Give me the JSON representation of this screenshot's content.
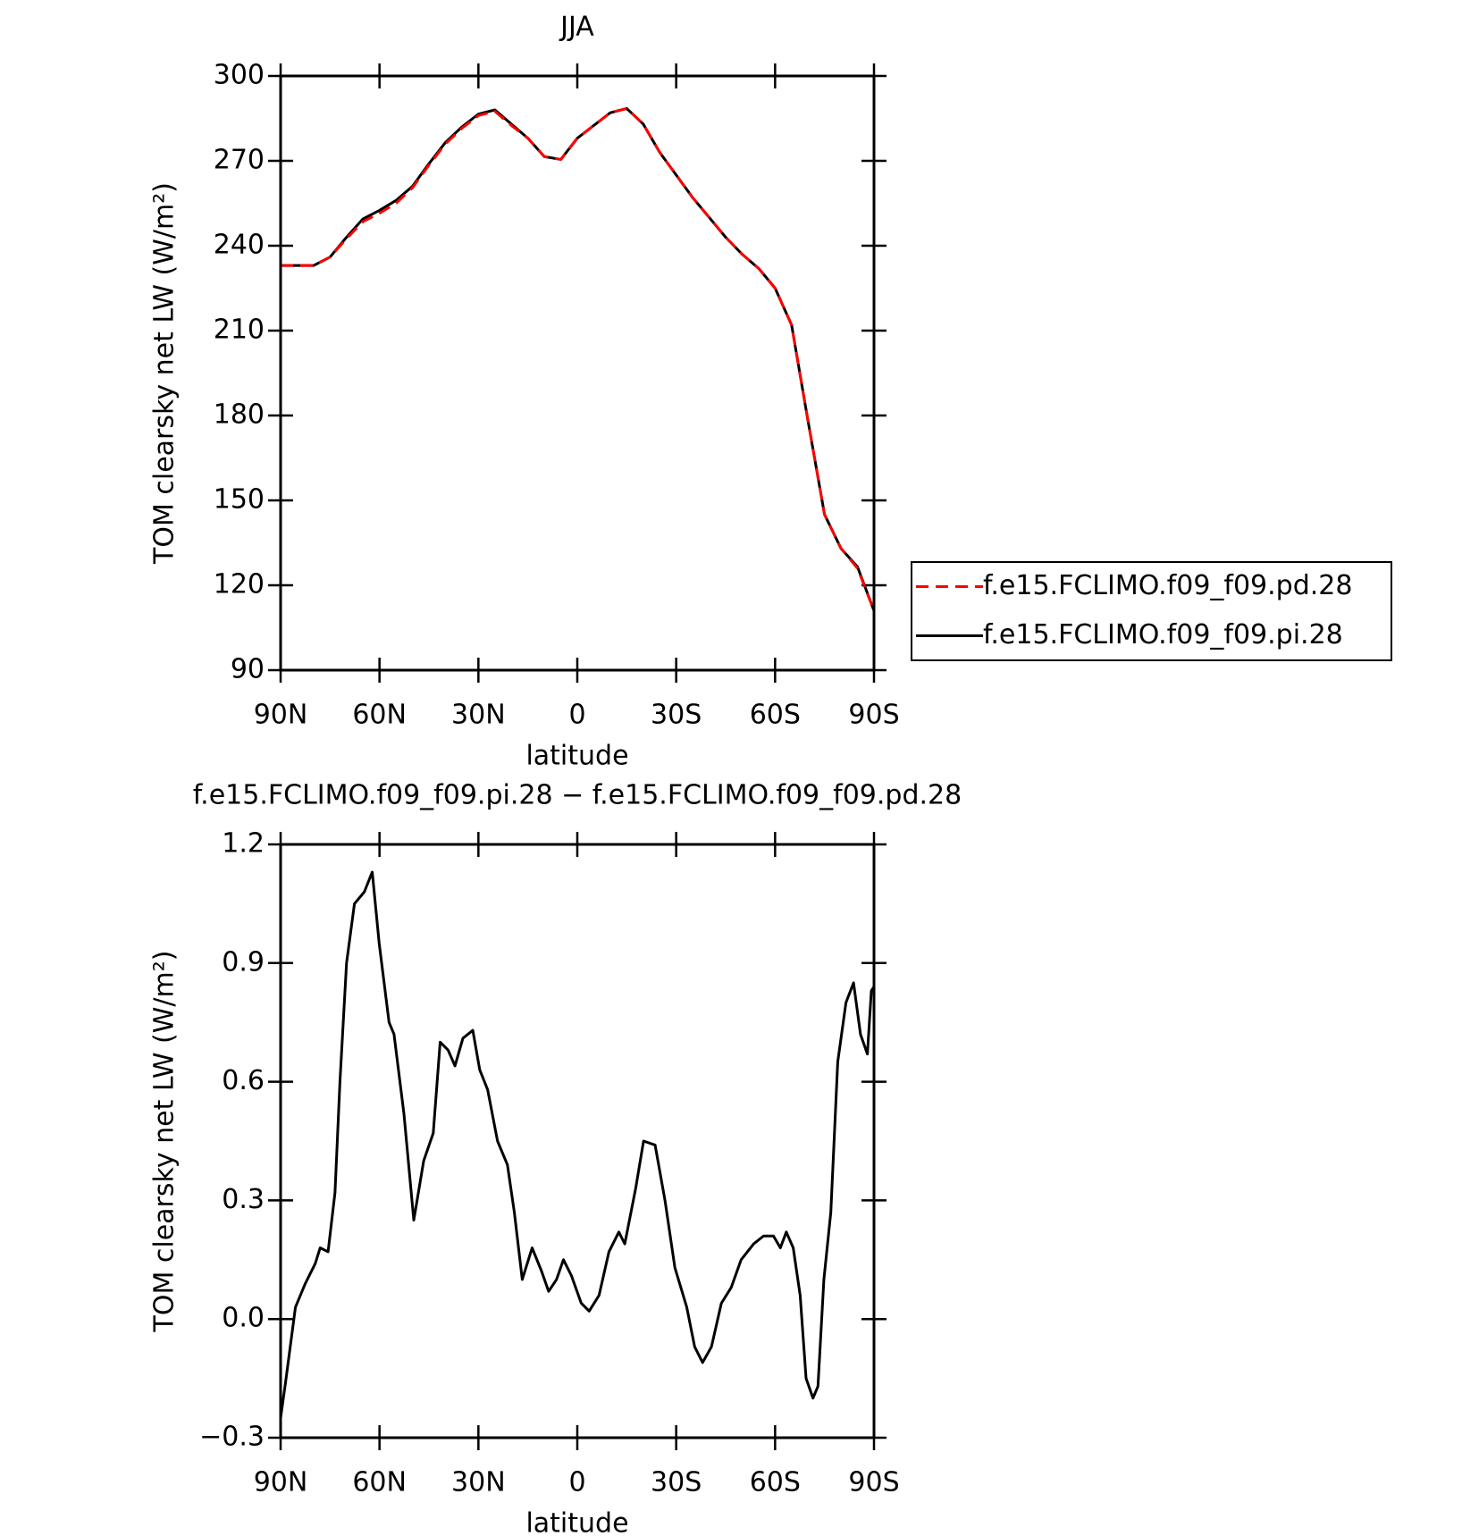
{
  "chart_data": [
    {
      "type": "line",
      "title": "JJA",
      "xlabel": "latitude",
      "ylabel": "TOM clearsky net LW (W/m²)",
      "xlim": [
        90,
        -90
      ],
      "ylim": [
        90,
        300
      ],
      "xticks": [
        {
          "value": 90,
          "label": "90N"
        },
        {
          "value": 60,
          "label": "60N"
        },
        {
          "value": 30,
          "label": "30N"
        },
        0,
        {
          "value": -30,
          "label": "30S"
        },
        {
          "value": -60,
          "label": "60S"
        },
        {
          "value": -90,
          "label": "90S"
        }
      ],
      "yticks": [
        90,
        120,
        150,
        180,
        210,
        240,
        270,
        300
      ],
      "legend": "right",
      "x": [
        90,
        85,
        80,
        75,
        70,
        65,
        60,
        55,
        50,
        45,
        40,
        35,
        30,
        25,
        20,
        15,
        10,
        5,
        0,
        -5,
        -10,
        -15,
        -20,
        -25,
        -30,
        -35,
        -40,
        -45,
        -50,
        -55,
        -60,
        -65,
        -70,
        -75,
        -80,
        -85,
        -90
      ],
      "series": [
        {
          "name": "f.e15.FCLIMO.f09_f09.pd.28",
          "color": "#ff0000",
          "line_style": "dashed",
          "values": [
            233,
            233,
            233,
            236,
            242.5,
            248.5,
            251.5,
            255,
            260.5,
            268.5,
            276,
            281.5,
            286,
            287.5,
            282.5,
            278,
            271.5,
            270.5,
            278,
            282.5,
            287,
            288.5,
            283,
            273,
            265,
            257,
            250,
            243,
            237,
            232,
            225,
            212,
            178,
            145,
            133,
            126,
            111
          ]
        },
        {
          "name": "f.e15.FCLIMO.f09_f09.pi.28",
          "color": "#000000",
          "line_style": "solid",
          "values": [
            233,
            233,
            233,
            236,
            243,
            249.5,
            252.5,
            256,
            261,
            269,
            276.5,
            282,
            286.5,
            288,
            283,
            278,
            271.5,
            270.5,
            278,
            282.5,
            287,
            288.5,
            283,
            273,
            265,
            257,
            250,
            243,
            237,
            232,
            225,
            212,
            178,
            145,
            133,
            126.5,
            111
          ]
        }
      ]
    },
    {
      "type": "line",
      "title": "f.e15.FCLIMO.f09_f09.pi.28 − f.e15.FCLIMO.f09_f09.pd.28",
      "xlabel": "latitude",
      "ylabel": "TOM clearsky net LW (W/m²)",
      "xlim": [
        90,
        -90
      ],
      "ylim": [
        -0.3,
        1.2
      ],
      "xticks": [
        {
          "value": 90,
          "label": "90N"
        },
        {
          "value": 60,
          "label": "60N"
        },
        {
          "value": 30,
          "label": "30N"
        },
        0,
        {
          "value": -30,
          "label": "30S"
        },
        {
          "value": -60,
          "label": "60S"
        },
        {
          "value": -90,
          "label": "90S"
        }
      ],
      "yticks": [
        {
          "value": -0.3,
          "label": "−0.3"
        },
        {
          "value": 0,
          "label": "0.0"
        },
        0.3,
        0.6,
        0.9,
        1.2
      ],
      "x": [
        90,
        88.5,
        85.5,
        82.5,
        79.5,
        78,
        75.6,
        73.5,
        72,
        70,
        67.6,
        64.6,
        62.2,
        60.1,
        57.1,
        55.6,
        52.6,
        49.6,
        46.6,
        43.7,
        41.6,
        39.2,
        37.1,
        34.7,
        31.7,
        29.6,
        27.2,
        24.2,
        21.2,
        19.1,
        16.7,
        13.7,
        10.8,
        8.7,
        6.3,
        4.2,
        1.8,
        -1.2,
        -3.6,
        -6.6,
        -9.6,
        -12.6,
        -14.4,
        -17.7,
        -20.1,
        -23.6,
        -26.6,
        -29.6,
        -33.2,
        -35.6,
        -38,
        -40.7,
        -43.7,
        -46.7,
        -49.7,
        -53.5,
        -56.5,
        -59.5,
        -61.6,
        -63.4,
        -65.5,
        -67.6,
        -69.4,
        -71.5,
        -73,
        -74.8,
        -76.9,
        -79,
        -81.5,
        -83.8,
        -85.9,
        -88,
        -89.2,
        -90
      ],
      "series": [
        {
          "color": "#000000",
          "line_style": "solid",
          "values": [
            -0.25,
            -0.16,
            0.03,
            0.09,
            0.14,
            0.18,
            0.17,
            0.32,
            0.6,
            0.9,
            1.05,
            1.08,
            1.13,
            0.95,
            0.75,
            0.72,
            0.52,
            0.25,
            0.4,
            0.47,
            0.7,
            0.68,
            0.64,
            0.71,
            0.73,
            0.63,
            0.58,
            0.45,
            0.39,
            0.27,
            0.1,
            0.18,
            0.12,
            0.07,
            0.1,
            0.15,
            0.11,
            0.04,
            0.02,
            0.06,
            0.17,
            0.22,
            0.19,
            0.33,
            0.45,
            0.44,
            0.3,
            0.13,
            0.03,
            -0.07,
            -0.11,
            -0.07,
            0.04,
            0.08,
            0.15,
            0.19,
            0.21,
            0.21,
            0.18,
            0.22,
            0.18,
            0.06,
            -0.15,
            -0.2,
            -0.17,
            0.1,
            0.27,
            0.65,
            0.8,
            0.85,
            0.72,
            0.67,
            0.83,
            0.84
          ]
        }
      ]
    }
  ]
}
